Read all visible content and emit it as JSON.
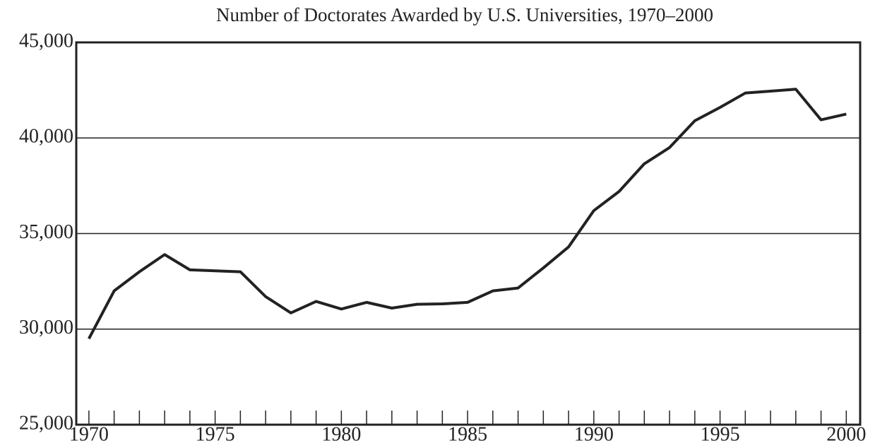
{
  "chart_data": {
    "type": "line",
    "title": "Number of Doctorates Awarded by U.S. Universities, 1970–2000",
    "x": [
      1970,
      1971,
      1972,
      1973,
      1974,
      1975,
      1976,
      1977,
      1978,
      1979,
      1980,
      1981,
      1982,
      1983,
      1984,
      1985,
      1986,
      1987,
      1988,
      1989,
      1990,
      1991,
      1992,
      1993,
      1994,
      1995,
      1996,
      1997,
      1998,
      1999,
      2000
    ],
    "values": [
      29500,
      32000,
      33000,
      33900,
      33100,
      33050,
      33000,
      31700,
      30850,
      31450,
      31050,
      31400,
      31100,
      31300,
      31320,
      31400,
      32000,
      32150,
      33200,
      34300,
      36200,
      37200,
      38650,
      39500,
      40900,
      41600,
      42350,
      42450,
      42550,
      40950,
      41250
    ],
    "color": "#222222",
    "xlim": [
      1969.5,
      2000.55
    ],
    "ylim": [
      25000,
      45000
    ],
    "xticks": [
      1970,
      1975,
      1980,
      1985,
      1990,
      1995,
      2000
    ],
    "xminor_ticks": [
      1971,
      1972,
      1973,
      1974,
      1976,
      1977,
      1978,
      1979,
      1981,
      1982,
      1983,
      1984,
      1986,
      1987,
      1988,
      1989,
      1991,
      1992,
      1993,
      1994,
      1996,
      1997,
      1998,
      1999
    ],
    "yticks": [
      {
        "value": 25000,
        "label": "25,000"
      },
      {
        "value": 30000,
        "label": "30,000"
      },
      {
        "value": 35000,
        "label": "35,000"
      },
      {
        "value": 40000,
        "label": "40,000"
      },
      {
        "value": 45000,
        "label": "45,000"
      }
    ],
    "grid": true
  }
}
